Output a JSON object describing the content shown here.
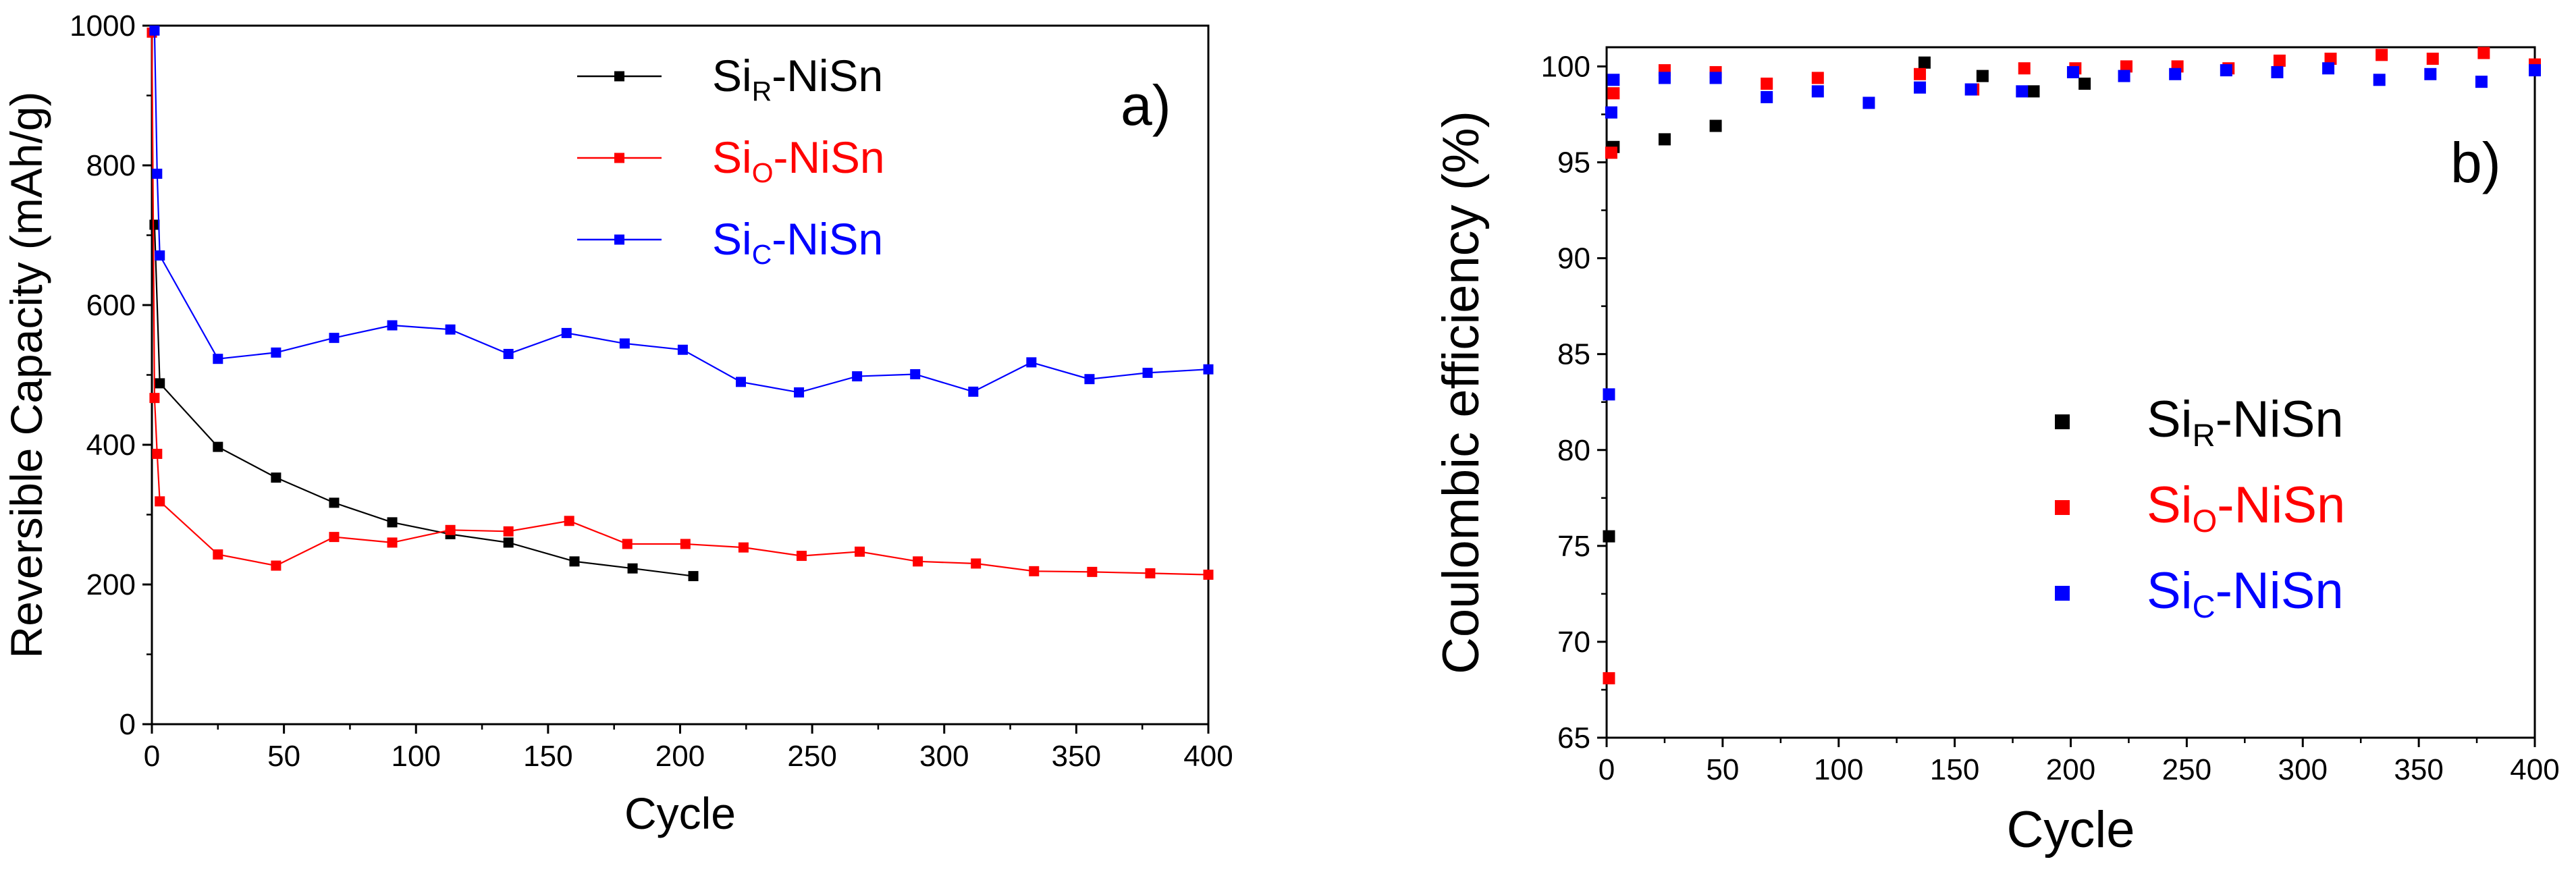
{
  "chart_data": [
    {
      "id": "a",
      "type": "line",
      "panel_label": "a)",
      "xlabel": "Cycle",
      "ylabel": "Reversible Capacity (mAh/g)",
      "xlim": [
        0,
        400
      ],
      "ylim": [
        0,
        1000
      ],
      "xticks": [
        0,
        50,
        100,
        150,
        200,
        250,
        300,
        350,
        400
      ],
      "yticks": [
        0,
        200,
        400,
        600,
        800,
        1000
      ],
      "legend_position": "top-right",
      "series": [
        {
          "name": "SiR-NiSn",
          "label_main": "Si",
          "label_sub": "R",
          "label_rest": "-NiSn",
          "color": "#000000",
          "x": [
            1,
            3,
            25,
            47,
            69,
            91,
            113,
            135,
            160,
            182,
            205
          ],
          "y": [
            715,
            488,
            397,
            353,
            317,
            289,
            272,
            260,
            233,
            223,
            212
          ]
        },
        {
          "name": "SiO-NiSn",
          "label_main": "Si",
          "label_sub": "O",
          "label_rest": "-NiSn",
          "color": "#ff0000",
          "x": [
            0,
            1,
            2,
            3,
            25,
            47,
            69,
            91,
            113,
            135,
            158,
            180,
            202,
            224,
            246,
            268,
            290,
            312,
            334,
            356,
            378,
            400
          ],
          "y": [
            990,
            467,
            387,
            319,
            243,
            227,
            268,
            260,
            278,
            276,
            291,
            258,
            258,
            253,
            241,
            247,
            233,
            230,
            219,
            218,
            216,
            214
          ]
        },
        {
          "name": "SiC-NiSn",
          "label_main": "Si",
          "label_sub": "C",
          "label_rest": "-NiSn",
          "color": "#0000ff",
          "x": [
            1,
            2,
            3,
            25,
            47,
            69,
            91,
            113,
            135,
            157,
            179,
            201,
            223,
            245,
            267,
            289,
            311,
            333,
            355,
            377,
            400
          ],
          "y": [
            993,
            788,
            671,
            523,
            532,
            553,
            571,
            565,
            530,
            560,
            545,
            536,
            490,
            475,
            498,
            501,
            476,
            518,
            494,
            503,
            508
          ]
        }
      ]
    },
    {
      "id": "b",
      "type": "scatter",
      "panel_label": "b)",
      "xlabel": "Cycle",
      "ylabel": "Coulombic efficiency (%)",
      "xlim": [
        0,
        400
      ],
      "ylim": [
        65,
        101
      ],
      "xticks": [
        0,
        50,
        100,
        150,
        200,
        250,
        300,
        350,
        400
      ],
      "yticks": [
        65,
        70,
        75,
        80,
        85,
        90,
        95,
        100
      ],
      "legend_position": "bottom-right",
      "series": [
        {
          "name": "SiR-NiSn",
          "label_main": "Si",
          "label_sub": "R",
          "label_rest": "-NiSn",
          "color": "#000000",
          "x": [
            1,
            3,
            25,
            47,
            137,
            162,
            184,
            206
          ],
          "y": [
            75.5,
            95.8,
            96.2,
            96.9,
            100.2,
            99.5,
            98.7,
            99.1
          ]
        },
        {
          "name": "SiO-NiSn",
          "label_main": "Si",
          "label_sub": "O",
          "label_rest": "-NiSn",
          "color": "#ff0000",
          "x": [
            1,
            2,
            3,
            25,
            47,
            69,
            91,
            135,
            158,
            180,
            202,
            224,
            246,
            268,
            290,
            312,
            334,
            356,
            378,
            400
          ],
          "y": [
            68.1,
            95.5,
            98.6,
            99.8,
            99.7,
            99.1,
            99.4,
            99.6,
            98.8,
            99.9,
            99.9,
            100.0,
            100.0,
            99.9,
            100.3,
            100.4,
            100.6,
            100.4,
            100.7,
            100.1
          ]
        },
        {
          "name": "SiC-NiSn",
          "label_main": "Si",
          "label_sub": "C",
          "label_rest": "-NiSn",
          "color": "#0000ff",
          "x": [
            1,
            2,
            3,
            25,
            47,
            69,
            91,
            113,
            135,
            157,
            179,
            201,
            223,
            245,
            267,
            289,
            311,
            333,
            355,
            377,
            400
          ],
          "y": [
            82.9,
            97.6,
            99.3,
            99.4,
            99.4,
            98.4,
            98.7,
            98.1,
            98.9,
            98.8,
            98.7,
            99.7,
            99.5,
            99.6,
            99.8,
            99.7,
            99.9,
            99.3,
            99.6,
            99.2,
            99.8
          ]
        }
      ]
    }
  ]
}
